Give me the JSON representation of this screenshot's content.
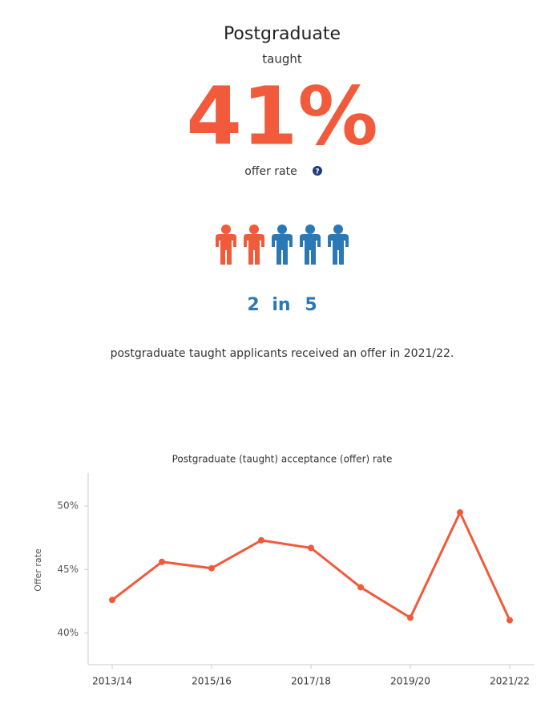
{
  "header": {
    "title": "Postgraduate",
    "subtitle": "taught",
    "stat": "41%",
    "stat_label": "offer rate"
  },
  "ratio": {
    "offered": 2,
    "connector": "in",
    "total": 5,
    "offered_color": "#f15a3a",
    "other_color": "#2a78b5"
  },
  "description": "postgraduate taught applicants received an offer in 2021/22.",
  "chart_data": {
    "type": "line",
    "title": "Postgraduate (taught) acceptance (offer) rate",
    "y_label": "Offer rate",
    "categories": [
      "2013/14",
      null,
      "2015/16",
      null,
      "2017/18",
      null,
      "2019/20",
      null,
      "2021/22"
    ],
    "values": [
      42.6,
      45.6,
      45.1,
      47.3,
      46.7,
      43.6,
      41.2,
      49.5,
      41.0
    ],
    "color": "#f15a3a",
    "ylim": [
      37.5,
      52.6
    ],
    "yticks": [
      {
        "value": 40,
        "label": "40%"
      },
      {
        "value": 45,
        "label": "45%"
      },
      {
        "value": 50,
        "label": "50%"
      }
    ]
  }
}
